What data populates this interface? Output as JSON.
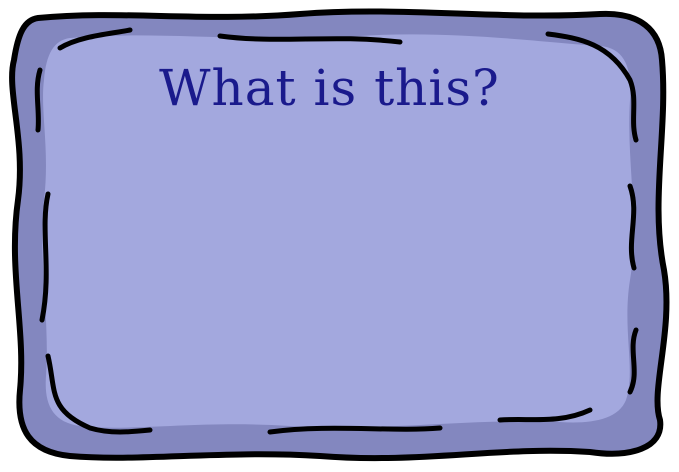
{
  "title": "What is this?",
  "colors": {
    "outer_border": "#8387bf",
    "inner_panel": "#a3a8de",
    "outline": "#000000",
    "title_text": "#1a1a8c"
  }
}
